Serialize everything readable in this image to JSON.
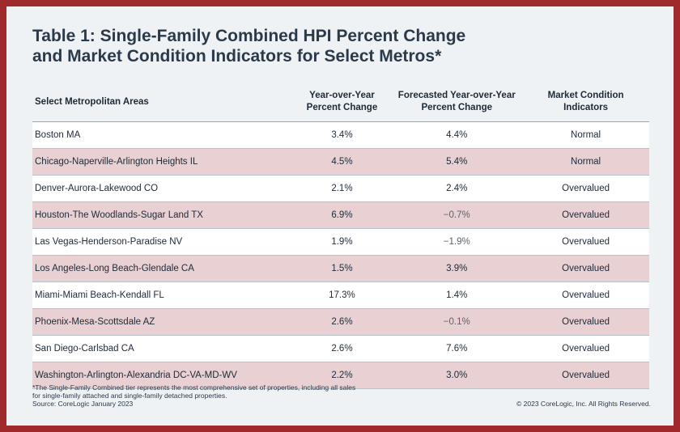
{
  "title_lines": [
    "Table 1: Single-Family Combined HPI Percent Change",
    "and Market Condition Indicators for Select Metros*"
  ],
  "chart_data": {
    "type": "table",
    "columns": [
      [
        "Select Metropolitan Areas"
      ],
      [
        "Year-over-Year",
        "Percent Change"
      ],
      [
        "Forecasted Year-over-Year",
        "Percent Change"
      ],
      [
        "Market Condition",
        "Indicators"
      ]
    ],
    "rows": [
      {
        "area": "Boston MA",
        "yoy": "3.4%",
        "forecast": "4.4%",
        "indicator": "Normal"
      },
      {
        "area": "Chicago-Naperville-Arlington Heights IL",
        "yoy": "4.5%",
        "forecast": "5.4%",
        "indicator": "Normal"
      },
      {
        "area": "Denver-Aurora-Lakewood CO",
        "yoy": "2.1%",
        "forecast": "2.4%",
        "indicator": "Overvalued"
      },
      {
        "area": "Houston-The Woodlands-Sugar Land TX",
        "yoy": "6.9%",
        "forecast": "−0.7%",
        "indicator": "Overvalued"
      },
      {
        "area": "Las Vegas-Henderson-Paradise NV",
        "yoy": "1.9%",
        "forecast": "−1.9%",
        "indicator": "Overvalued"
      },
      {
        "area": "Los Angeles-Long Beach-Glendale CA",
        "yoy": "1.5%",
        "forecast": "3.9%",
        "indicator": "Overvalued"
      },
      {
        "area": "Miami-Miami Beach-Kendall FL",
        "yoy": "17.3%",
        "forecast": "1.4%",
        "indicator": "Overvalued"
      },
      {
        "area": "Phoenix-Mesa-Scottsdale AZ",
        "yoy": "2.6%",
        "forecast": "−0.1%",
        "indicator": "Overvalued"
      },
      {
        "area": "San Diego-Carlsbad CA",
        "yoy": "2.6%",
        "forecast": "7.6%",
        "indicator": "Overvalued"
      },
      {
        "area": "Washington-Arlington-Alexandria DC-VA-MD-WV",
        "yoy": "2.2%",
        "forecast": "3.0%",
        "indicator": "Overvalued"
      }
    ]
  },
  "footnote_lines": [
    "*The Single-Family Combined tier represents the most comprehensive set of properties, including all sales",
    "for single-family attached and single-family detached properties.",
    "Source: CoreLogic January 2023"
  ],
  "copyright": "© 2023 CoreLogic, Inc. All Rights Reserved.",
  "colors": {
    "border": "#9e2a2b",
    "background": "#eef2f4",
    "row_alt": "#e8d0d3",
    "text": "#1e2a38"
  }
}
